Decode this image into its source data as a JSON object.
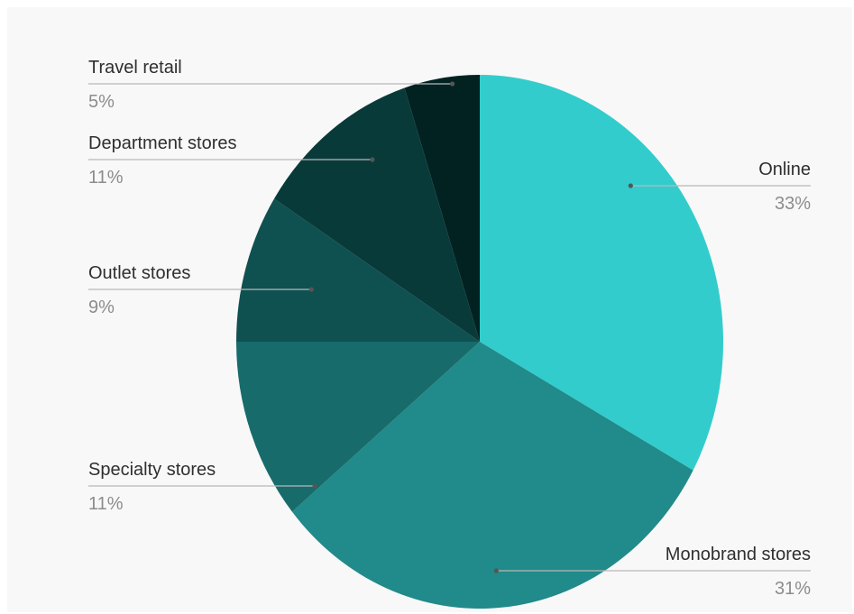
{
  "chart_data": {
    "type": "pie",
    "slices": [
      {
        "label": "Online",
        "value": 33,
        "value_label": "33%",
        "color": "#33cccc"
      },
      {
        "label": "Monobrand stores",
        "value": 31,
        "value_label": "31%",
        "color": "#218a8a"
      },
      {
        "label": "Specialty stores",
        "value": 11,
        "value_label": "11%",
        "color": "#186b6b"
      },
      {
        "label": "Outlet stores",
        "value": 9,
        "value_label": "9%",
        "color": "#0f5050"
      },
      {
        "label": "Department stores",
        "value": 11,
        "value_label": "11%",
        "color": "#093a3a"
      },
      {
        "label": "Travel retail",
        "value": 5,
        "value_label": "5%",
        "color": "#022222"
      }
    ],
    "start_angle": "12 o'clock",
    "direction": "clockwise",
    "legend": "none"
  },
  "colors": {
    "background": "#f8f8f8",
    "leader_line": "#b8b8b8"
  }
}
